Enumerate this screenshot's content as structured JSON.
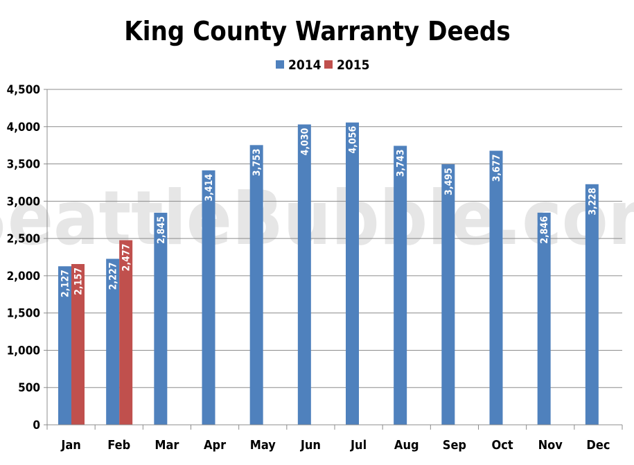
{
  "chart_data": {
    "type": "bar",
    "title": "King County Warranty Deeds",
    "watermark": "SeattleBubble.com",
    "categories": [
      "Jan",
      "Feb",
      "Mar",
      "Apr",
      "May",
      "Jun",
      "Jul",
      "Aug",
      "Sep",
      "Oct",
      "Nov",
      "Dec"
    ],
    "series": [
      {
        "name": "2014",
        "color": "#4f81bd",
        "values": [
          2127,
          2227,
          2845,
          3414,
          3753,
          4030,
          4056,
          3743,
          3495,
          3677,
          2846,
          3228
        ],
        "labels": [
          "2,127",
          "2,227",
          "2,845",
          "3,414",
          "3,753",
          "4,030",
          "4,056",
          "3,743",
          "3,495",
          "3,677",
          "2,846",
          "3,228"
        ]
      },
      {
        "name": "2015",
        "color": "#c0504d",
        "values": [
          2157,
          2477,
          null,
          null,
          null,
          null,
          null,
          null,
          null,
          null,
          null,
          null
        ],
        "labels": [
          "2,157",
          "2,477",
          "",
          "",
          "",
          "",
          "",
          "",
          "",
          "",
          "",
          ""
        ]
      }
    ],
    "ylim": [
      0,
      4500
    ],
    "yticks": [
      0,
      500,
      1000,
      1500,
      2000,
      2500,
      3000,
      3500,
      4000,
      4500
    ],
    "ytick_labels": [
      "0",
      "500",
      "1,000",
      "1,500",
      "2,000",
      "2,500",
      "3,000",
      "3,500",
      "4,000",
      "4,500"
    ],
    "grid": true,
    "legend_position": "top-center"
  }
}
